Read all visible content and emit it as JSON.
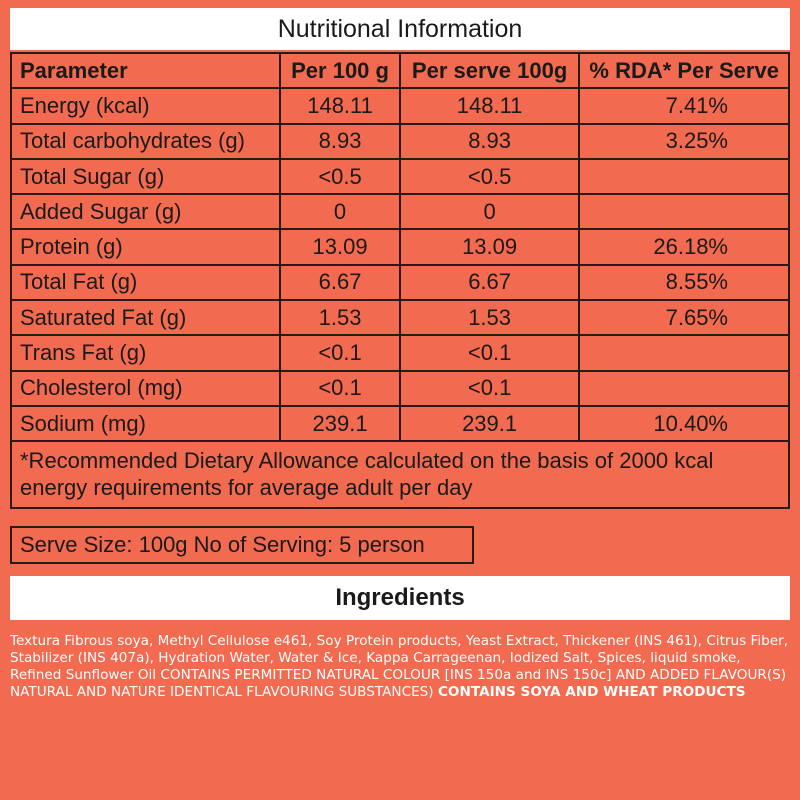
{
  "nutrition": {
    "title": "Nutritional Information",
    "headers": [
      "Parameter",
      "Per 100 g",
      "Per serve 100g",
      "% RDA* Per Serve"
    ],
    "rows": [
      [
        "Energy (kcal)",
        "148.11",
        "148.11",
        "7.41%"
      ],
      [
        "Total carbohydrates (g)",
        "8.93",
        "8.93",
        "3.25%"
      ],
      [
        "Total Sugar (g)",
        "<0.5",
        "<0.5",
        ""
      ],
      [
        "Added Sugar (g)",
        "0",
        "0",
        ""
      ],
      [
        "Protein (g)",
        "13.09",
        "13.09",
        "26.18%"
      ],
      [
        "Total Fat (g)",
        "6.67",
        "6.67",
        "8.55%"
      ],
      [
        "Saturated Fat (g)",
        "1.53",
        "1.53",
        "7.65%"
      ],
      [
        "Trans Fat (g)",
        "<0.1",
        "<0.1",
        ""
      ],
      [
        "Cholesterol  (mg)",
        "<0.1",
        "<0.1",
        ""
      ],
      [
        "Sodium  (mg)",
        "239.1",
        "239.1",
        "10.40%"
      ]
    ],
    "footnote": "*Recommended Dietary Allowance calculated on the basis of 2000 kcal energy requirements for average  adult per day",
    "serve_size": "Serve Size: 100g No of Serving: 5 person"
  },
  "ingredients": {
    "title": "Ingredients",
    "text": "Textura Fibrous soya, Methyl Cellulose e461, Soy Protein products, Yeast Extract, Thickener (INS 461), Citrus Fiber, Stabilizer (INS 407a), Hydration Water, Water & Ice, Kappa Carrageenan, Iodized Salt, Spices, liquid smoke, Refined Sunflower Oil CONTAINS PERMITTED NATURAL COLOUR [INS 150a and INS 150c] AND ADDED FLAVOUR(S) NATURAL AND NATURE IDENTICAL FLAVOURING SUBSTANCES) ",
    "allergen": "CONTAINS SOYA AND WHEAT PRODUCTS"
  },
  "colors": {
    "background": "#F26A4F",
    "border": "#2a1a14",
    "text": "#1a1a1a"
  }
}
